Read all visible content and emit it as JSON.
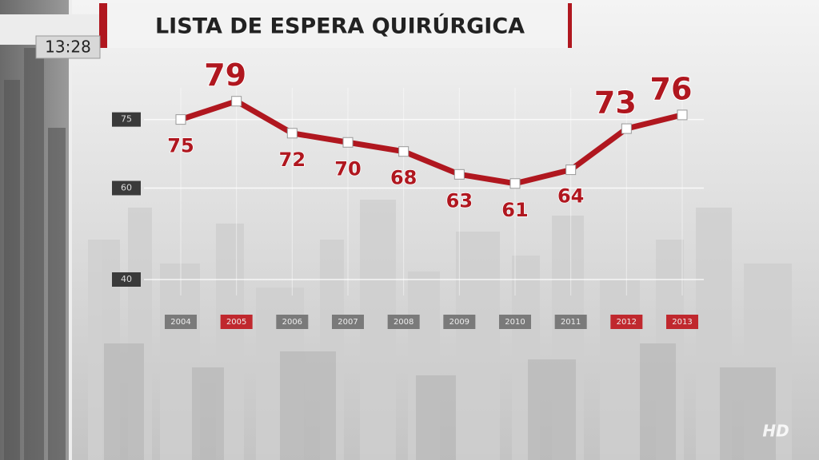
{
  "chart_data": {
    "type": "line",
    "title": "LISTA DE ESPERA QUIRÚRGICA",
    "categories": [
      "2004",
      "2005",
      "2006",
      "2007",
      "2008",
      "2009",
      "2010",
      "2011",
      "2012",
      "2013"
    ],
    "values": [
      75,
      79,
      72,
      70,
      68,
      63,
      61,
      64,
      73,
      76
    ],
    "highlight": [
      false,
      true,
      false,
      false,
      false,
      false,
      false,
      false,
      true,
      true
    ],
    "color": "#b0171f",
    "highlight_color": "#c0282e",
    "ylim": [
      40,
      80
    ],
    "yticks": [
      40,
      60,
      75
    ],
    "grid": true
  },
  "overlay": {
    "clock": "13:28",
    "badge": "HD"
  }
}
